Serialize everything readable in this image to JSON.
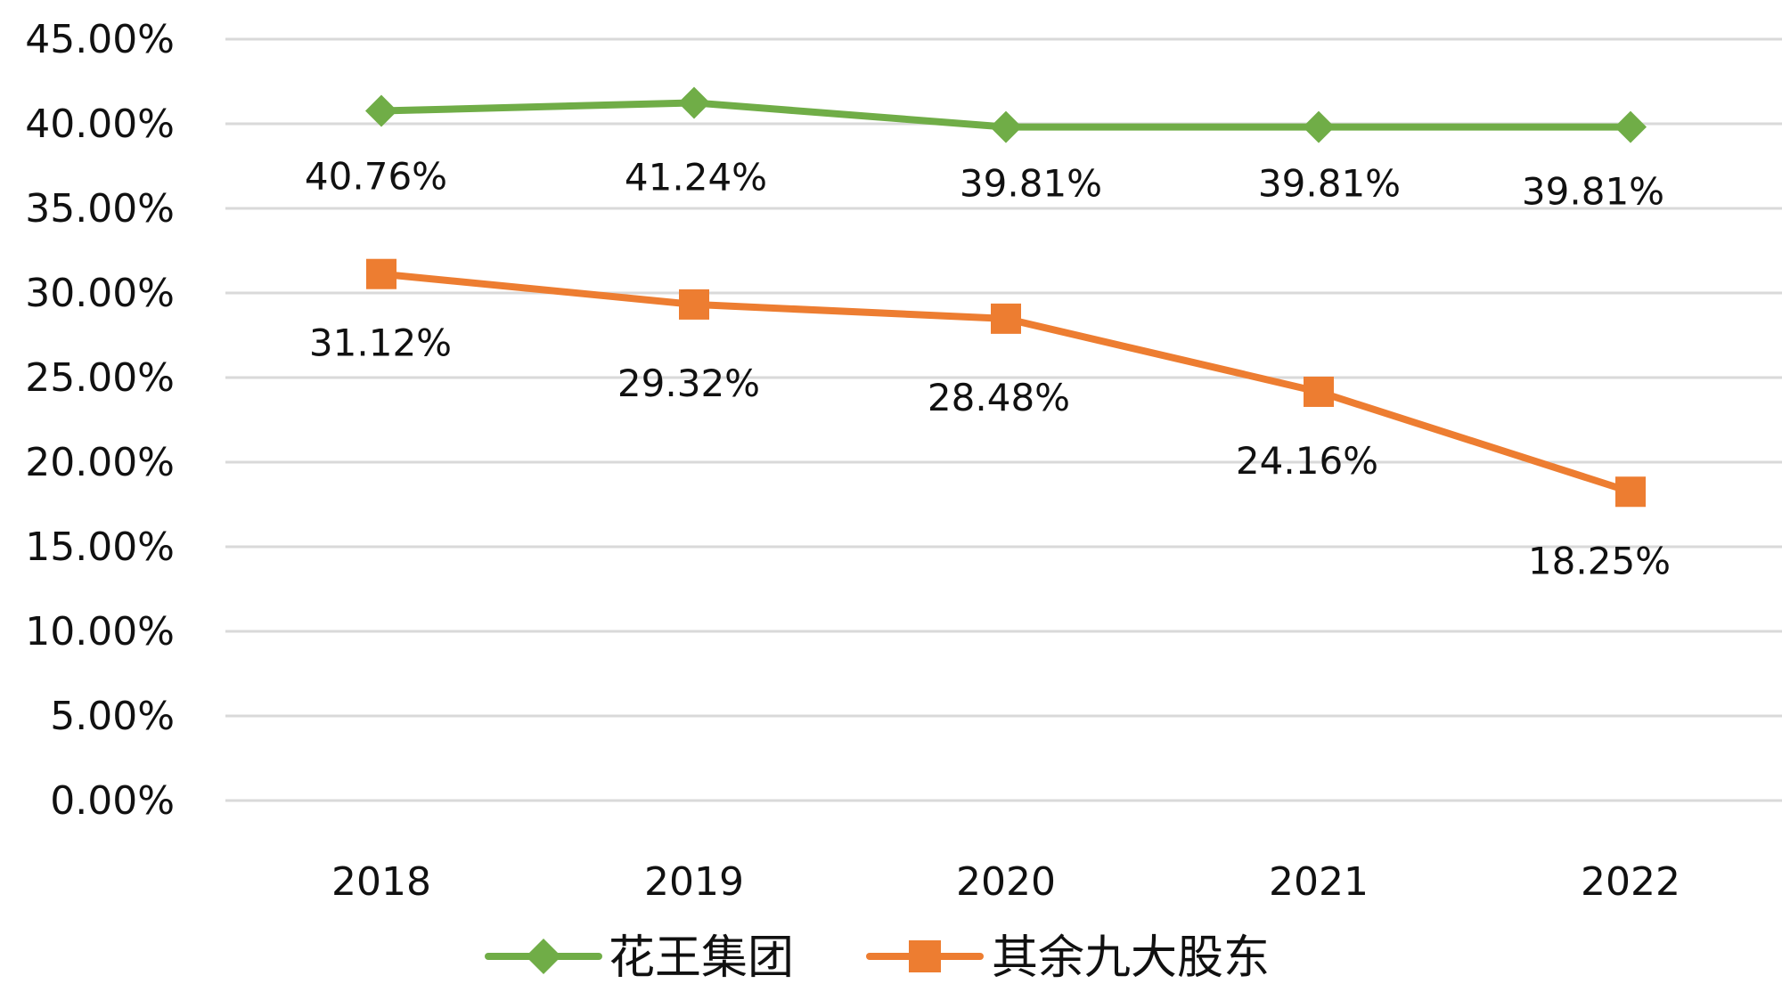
{
  "chart_data": {
    "type": "line",
    "title": "",
    "xlabel": "",
    "ylabel": "",
    "categories": [
      "2018",
      "2019",
      "2020",
      "2021",
      "2022"
    ],
    "ylim": [
      0,
      45
    ],
    "yticks": [
      0,
      5,
      10,
      15,
      20,
      25,
      30,
      35,
      40,
      45
    ],
    "ytick_labels": [
      "0.00%",
      "5.00%",
      "10.00%",
      "15.00%",
      "20.00%",
      "25.00%",
      "30.00%",
      "35.00%",
      "40.00%",
      "45.00%"
    ],
    "grid": true,
    "legend_position": "bottom",
    "series": [
      {
        "name": "花王集团",
        "color": "#70ad47",
        "marker": "diamond",
        "values": [
          40.76,
          41.24,
          39.81,
          39.81,
          39.81
        ],
        "labels": [
          "40.76%",
          "41.24%",
          "39.81%",
          "39.81%",
          "39.81%"
        ],
        "label_position": "below"
      },
      {
        "name": "其余九大股东",
        "color": "#ed7d31",
        "marker": "square",
        "values": [
          31.12,
          29.32,
          28.48,
          24.16,
          18.25
        ],
        "labels": [
          "31.12%",
          "29.32%",
          "28.48%",
          "24.16%",
          "18.25%"
        ],
        "label_position": "below"
      }
    ]
  }
}
